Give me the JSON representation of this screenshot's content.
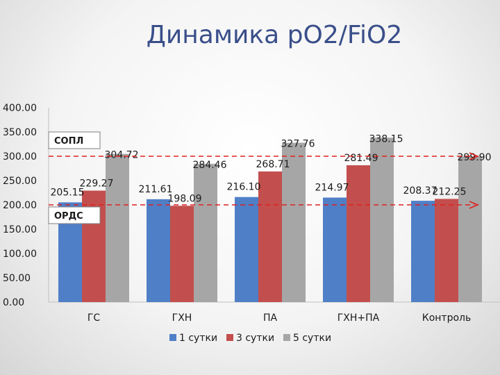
{
  "title": "Динамика рO2/FiO2",
  "colors": {
    "series": [
      "#4f7fc7",
      "#c24f4d",
      "#a6a6a6"
    ],
    "reference_line": "#e02020"
  },
  "chart_data": {
    "type": "bar",
    "title": "Динамика рO2/FiO2",
    "categories": [
      "ГС",
      "ГХН",
      "ПА",
      "ГХН+ПА",
      "Контроль"
    ],
    "series": [
      {
        "name": "1 сутки",
        "values": [
          205.15,
          211.61,
          216.1,
          214.97,
          208.37
        ]
      },
      {
        "name": "3 сутки",
        "values": [
          229.27,
          198.09,
          268.71,
          281.49,
          212.25
        ]
      },
      {
        "name": "5 сутки",
        "values": [
          304.72,
          284.46,
          327.76,
          338.15,
          299.9
        ]
      }
    ],
    "data_labels": [
      [
        "205.15",
        "211.61",
        "216.10",
        "214.97",
        "208.37"
      ],
      [
        "229.27",
        "198.09",
        "268.71",
        "281.49",
        "212.25"
      ],
      [
        "304.72",
        "284.46",
        "327.76",
        "338.15",
        "299.90"
      ]
    ],
    "ylim": [
      0,
      400
    ],
    "yticks": [
      0,
      50,
      100,
      150,
      200,
      250,
      300,
      350,
      400
    ],
    "ytick_labels": [
      "0.00",
      "50.00",
      "100.00",
      "150.00",
      "200.00",
      "250.00",
      "300.00",
      "350.00",
      "400.00"
    ],
    "grid": false,
    "legend_position": "bottom",
    "reference_lines": [
      {
        "label": "СОПЛ",
        "value": 300
      },
      {
        "label": "ОРДС",
        "value": 200
      }
    ]
  }
}
